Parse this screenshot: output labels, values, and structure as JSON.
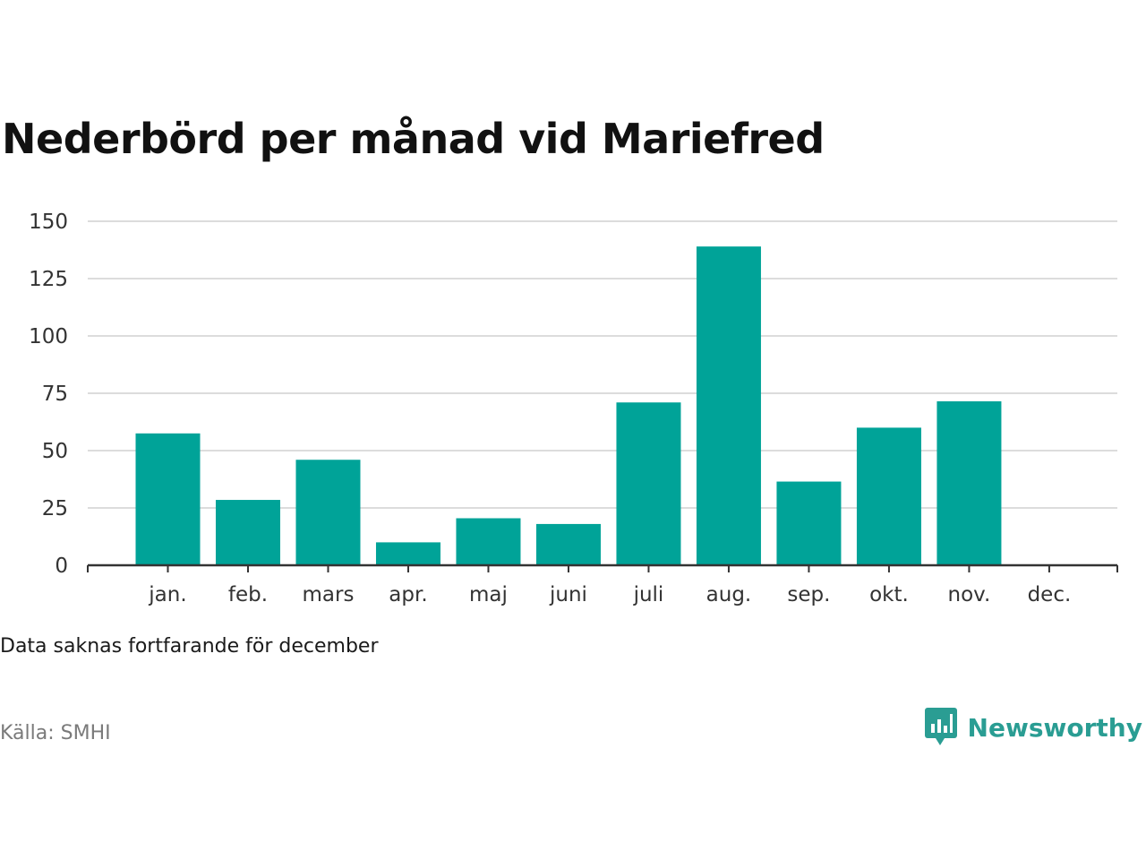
{
  "colors": {
    "bar": "#00a398",
    "grid": "#dcdcdc",
    "axis": "#333333",
    "brand": "#2a9d93"
  },
  "header": {
    "title": "Nederbörd per månad vid Mariefred"
  },
  "footer": {
    "note": "Data saknas fortfarande för december",
    "source": "Källa: SMHI",
    "brand": "Newsworthy"
  },
  "chart_data": {
    "type": "bar",
    "title": "Nederbörd per månad vid Mariefred",
    "xlabel": "",
    "ylabel": "",
    "ylim": [
      0,
      150
    ],
    "yticks": [
      0,
      25,
      50,
      75,
      100,
      125,
      150
    ],
    "grid": true,
    "categories": [
      "jan.",
      "feb.",
      "mars",
      "apr.",
      "maj",
      "juni",
      "juli",
      "aug.",
      "sep.",
      "okt.",
      "nov.",
      "dec."
    ],
    "values": [
      57.5,
      28.5,
      46,
      10,
      20.5,
      18,
      71,
      139,
      36.5,
      60,
      71.5,
      null
    ]
  }
}
